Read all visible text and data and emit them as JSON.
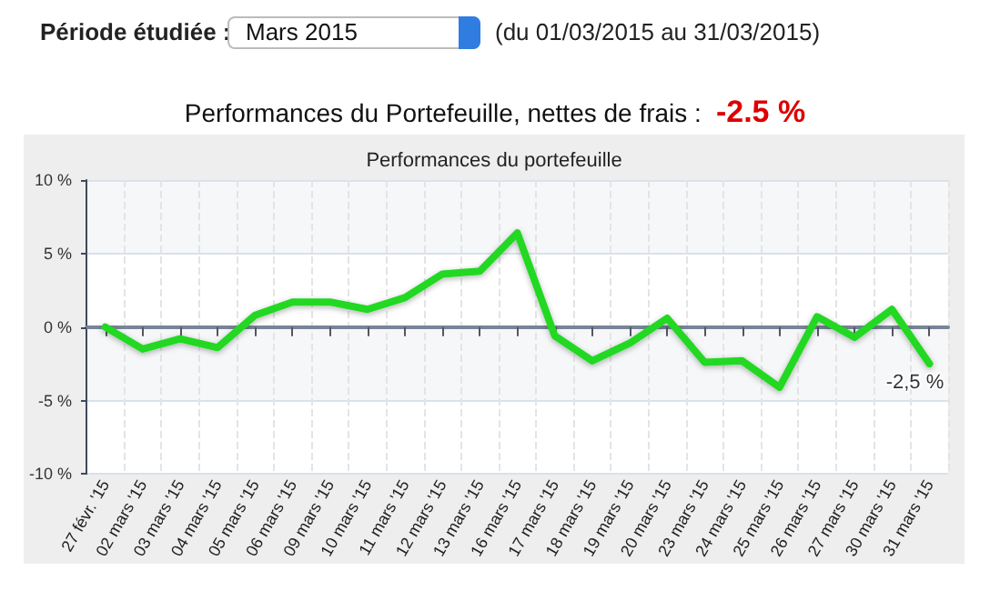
{
  "chart_data": {
    "type": "line",
    "title": "Performances du portefeuille",
    "annotations": [
      "Période étudiée :",
      "Mars 2015",
      "(du 01/03/2015 au 31/03/2015)",
      "Performances du Portefeuille, nettes de frais  :",
      "-2.5 %"
    ],
    "categories": [
      "27 févr. '15",
      "02 mars '15",
      "03 mars '15",
      "04 mars '15",
      "05 mars '15",
      "06 mars '15",
      "09 mars '15",
      "10 mars '15",
      "11 mars '15",
      "12 mars '15",
      "13 mars '15",
      "16 mars '15",
      "17 mars '15",
      "18 mars '15",
      "19 mars '15",
      "20 mars '15",
      "23 mars '15",
      "24 mars '15",
      "25 mars '15",
      "26 mars '15",
      "27 mars '15",
      "30 mars '15",
      "31 mars '15"
    ],
    "series": [
      {
        "color": "#22d822",
        "values": [
          0,
          -1.5,
          -0.8,
          -1.4,
          0.8,
          1.7,
          1.7,
          1.2,
          2.0,
          3.6,
          3.8,
          6.4,
          -0.6,
          -2.3,
          -1.1,
          0.6,
          -2.4,
          -2.3,
          -4.1,
          0.7,
          -0.7,
          1.2,
          -2.5
        ],
        "value_labels": [
          null,
          null,
          null,
          null,
          null,
          null,
          null,
          null,
          null,
          null,
          null,
          null,
          null,
          null,
          null,
          null,
          null,
          null,
          null,
          null,
          null,
          null,
          "-2,5 %"
        ]
      }
    ],
    "ylim": [
      -10,
      10
    ],
    "yticks": [
      {
        "value": -10,
        "label": "-10 %"
      },
      {
        "value": -5,
        "label": "-5 %"
      },
      {
        "value": 0,
        "label": "0 %"
      },
      {
        "value": 5,
        "label": "5 %"
      },
      {
        "value": 10,
        "label": "10 %"
      }
    ],
    "grid": true,
    "marker": "none",
    "line_style": "solid"
  }
}
